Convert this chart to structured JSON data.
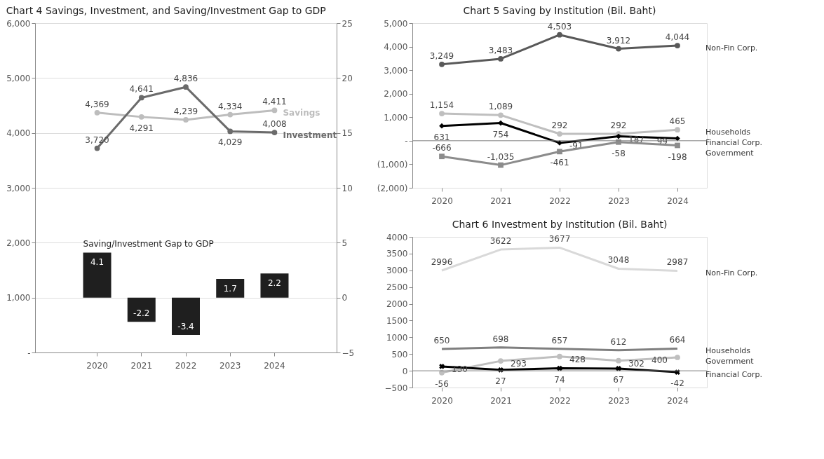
{
  "chart_data": [
    {
      "type": "line",
      "title": "Chart 4 Savings, Investment, and Saving/Investment Gap to GDP",
      "categories": [
        "2020",
        "2021",
        "2022",
        "2023",
        "2024"
      ],
      "series": [
        {
          "name": "Savings",
          "color": "#bdbdbd",
          "marker": "circle",
          "values": [
            4369,
            4291,
            4239,
            4334,
            4411
          ],
          "value_labels": [
            "4,369",
            "4,291",
            "4,239",
            "4,334",
            "4,411"
          ]
        },
        {
          "name": "Investment",
          "color": "#6b6b6b",
          "marker": "circle",
          "values": [
            3720,
            4641,
            4836,
            4029,
            4008
          ],
          "value_labels": [
            "3,720",
            "4,641",
            "4,836",
            "4,029",
            "4,008"
          ]
        },
        {
          "name": "Saving/Investment Gap to GDP",
          "type": "bar",
          "axis": "y2",
          "color": "#1f1f1f",
          "values": [
            4.1,
            -2.2,
            -3.4,
            1.7,
            2.2
          ],
          "value_labels": [
            "4.1",
            "-2.2",
            "-3.4",
            "1.7",
            "2.2"
          ]
        }
      ],
      "ylim": [
        0,
        6000
      ],
      "yticks": [
        {
          "value": 0,
          "label": "-"
        },
        {
          "value": 1000,
          "label": "1,000"
        },
        {
          "value": 2000,
          "label": "2,000"
        },
        {
          "value": 3000,
          "label": "3,000"
        },
        {
          "value": 4000,
          "label": "4,000"
        },
        {
          "value": 5000,
          "label": "5,000"
        },
        {
          "value": 6000,
          "label": "6,000"
        }
      ],
      "y2lim": [
        -5,
        25
      ],
      "y2ticks": [
        -5,
        0,
        5,
        10,
        15,
        20,
        25
      ],
      "grid": "y"
    },
    {
      "type": "line",
      "title": "Chart 5 Saving by Institution (Bil. Baht)",
      "categories": [
        "2020",
        "2021",
        "2022",
        "2023",
        "2024"
      ],
      "series": [
        {
          "name": "Non-Fin Corp.",
          "color": "#595959",
          "marker": "circle",
          "values": [
            3249,
            3483,
            4503,
            3912,
            4044
          ],
          "value_labels": [
            "3,249",
            "3,483",
            "4,503",
            "3,912",
            "4,044"
          ]
        },
        {
          "name": "Households",
          "color": "#bfbfbf",
          "marker": "circle",
          "values": [
            1154,
            1089,
            292,
            292,
            465
          ],
          "value_labels": [
            "1,154",
            "1,089",
            "292",
            "292",
            "465"
          ]
        },
        {
          "name": "Financial Corp.",
          "color": "#000000",
          "marker": "diamond",
          "values": [
            631,
            754,
            -91,
            187,
            99
          ],
          "value_labels": [
            "631",
            "754",
            "-91",
            "187",
            "99"
          ]
        },
        {
          "name": "Government",
          "color": "#8c8c8c",
          "marker": "square",
          "values": [
            -666,
            -1035,
            -461,
            -58,
            -198
          ],
          "value_labels": [
            "-666",
            "-1,035",
            "-461",
            "-58",
            "-198"
          ]
        }
      ],
      "ylim": [
        -2000,
        5000
      ],
      "yticks": [
        {
          "value": -2000,
          "label": "(2,000)"
        },
        {
          "value": -1000,
          "label": "(1,000)"
        },
        {
          "value": 0,
          "label": "-"
        },
        {
          "value": 1000,
          "label": "1,000"
        },
        {
          "value": 2000,
          "label": "2,000"
        },
        {
          "value": 3000,
          "label": "3,000"
        },
        {
          "value": 4000,
          "label": "4,000"
        },
        {
          "value": 5000,
          "label": "5,000"
        }
      ],
      "ref_lines": [
        {
          "axis": "y",
          "value": 0,
          "color": "#7f7f7f"
        }
      ]
    },
    {
      "type": "line",
      "title": "Chart 6 Investment by Institution (Bil. Baht)",
      "categories": [
        "2020",
        "2021",
        "2022",
        "2023",
        "2024"
      ],
      "series": [
        {
          "name": "Non-Fin Corp.",
          "color": "#d9d9d9",
          "values": [
            2996,
            3622,
            3677,
            3048,
            2987
          ]
        },
        {
          "name": "Households",
          "color": "#7f7f7f",
          "values": [
            650,
            698,
            657,
            612,
            664
          ]
        },
        {
          "name": "Government",
          "color": "#bfbfbf",
          "marker": "circle",
          "values": [
            -56,
            293,
            428,
            302,
            400
          ]
        },
        {
          "name": "Financial Corp.",
          "color": "#000000",
          "marker": "cross",
          "values": [
            130,
            27,
            74,
            67,
            -42
          ]
        }
      ],
      "ylim": [
        -500,
        4000
      ],
      "yticks": [
        -500,
        0,
        500,
        1000,
        1500,
        2000,
        2500,
        3000,
        3500,
        4000
      ],
      "ref_lines": [
        {
          "axis": "y",
          "value": 0,
          "color": "#7f7f7f"
        }
      ],
      "data_labels": true
    }
  ]
}
